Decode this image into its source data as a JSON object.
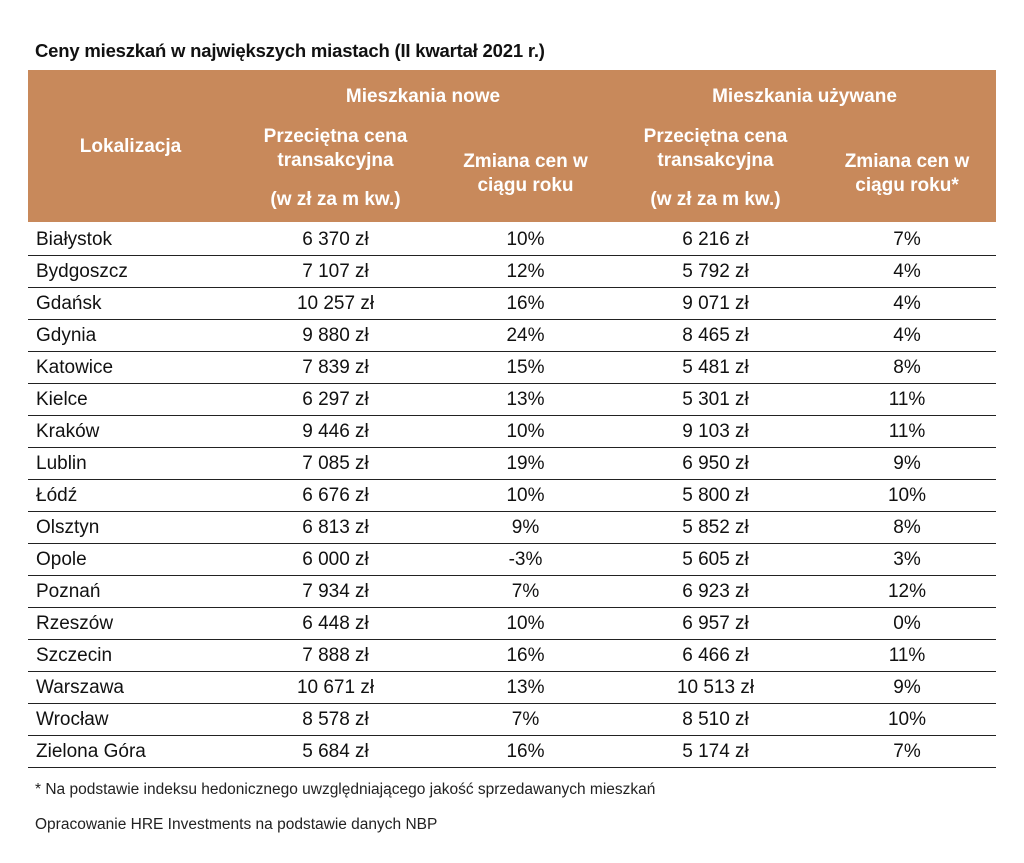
{
  "title": "Ceny mieszkań w największych miastach (II kwartał 2021 r.)",
  "header": {
    "location": "Lokalizacja",
    "group_new": "Mieszkania nowe",
    "group_used": "Mieszkania używane",
    "avg_price_line1": "Przeciętna cena",
    "avg_price_line2": "transakcyjna",
    "avg_price_unit": "(w zł za m kw.)",
    "change_new_line1": "Zmiana cen w",
    "change_new_line2": "ciągu roku",
    "change_used_line1": "Zmiana cen w",
    "change_used_line2": "ciągu roku*"
  },
  "rows": [
    {
      "city": "Białystok",
      "new_price": "6 370 zł",
      "new_change": "10%",
      "used_price": "6 216 zł",
      "used_change": "7%"
    },
    {
      "city": "Bydgoszcz",
      "new_price": "7 107 zł",
      "new_change": "12%",
      "used_price": "5 792 zł",
      "used_change": "4%"
    },
    {
      "city": "Gdańsk",
      "new_price": "10 257 zł",
      "new_change": "16%",
      "used_price": "9 071 zł",
      "used_change": "4%"
    },
    {
      "city": "Gdynia",
      "new_price": "9 880 zł",
      "new_change": "24%",
      "used_price": "8 465 zł",
      "used_change": "4%"
    },
    {
      "city": "Katowice",
      "new_price": "7 839 zł",
      "new_change": "15%",
      "used_price": "5 481 zł",
      "used_change": "8%"
    },
    {
      "city": "Kielce",
      "new_price": "6 297 zł",
      "new_change": "13%",
      "used_price": "5 301 zł",
      "used_change": "11%"
    },
    {
      "city": "Kraków",
      "new_price": "9 446 zł",
      "new_change": "10%",
      "used_price": "9 103 zł",
      "used_change": "11%"
    },
    {
      "city": "Lublin",
      "new_price": "7 085 zł",
      "new_change": "19%",
      "used_price": "6 950 zł",
      "used_change": "9%"
    },
    {
      "city": "Łódź",
      "new_price": "6 676 zł",
      "new_change": "10%",
      "used_price": "5 800 zł",
      "used_change": "10%"
    },
    {
      "city": "Olsztyn",
      "new_price": "6 813 zł",
      "new_change": "9%",
      "used_price": "5 852 zł",
      "used_change": "8%"
    },
    {
      "city": "Opole",
      "new_price": "6 000 zł",
      "new_change": "-3%",
      "used_price": "5 605 zł",
      "used_change": "3%"
    },
    {
      "city": "Poznań",
      "new_price": "7 934 zł",
      "new_change": "7%",
      "used_price": "6 923 zł",
      "used_change": "12%"
    },
    {
      "city": "Rzeszów",
      "new_price": "6 448 zł",
      "new_change": "10%",
      "used_price": "6 957 zł",
      "used_change": "0%"
    },
    {
      "city": "Szczecin",
      "new_price": "7 888 zł",
      "new_change": "16%",
      "used_price": "6 466 zł",
      "used_change": "11%"
    },
    {
      "city": "Warszawa",
      "new_price": "10 671 zł",
      "new_change": "13%",
      "used_price": "10 513 zł",
      "used_change": "9%"
    },
    {
      "city": "Wrocław",
      "new_price": "8 578 zł",
      "new_change": "7%",
      "used_price": "8 510 zł",
      "used_change": "10%"
    },
    {
      "city": "Zielona Góra",
      "new_price": "5 684 zł",
      "new_change": "16%",
      "used_price": "5 174 zł",
      "used_change": "7%"
    }
  ],
  "footnote": "* Na podstawie indeksu hedonicznego uwzględniającego jakość sprzedawanych mieszkań",
  "source": "Opracowanie HRE Investments na podstawie danych NBP",
  "colors": {
    "header_bg": "#c8895b",
    "header_text": "#ffffff"
  }
}
